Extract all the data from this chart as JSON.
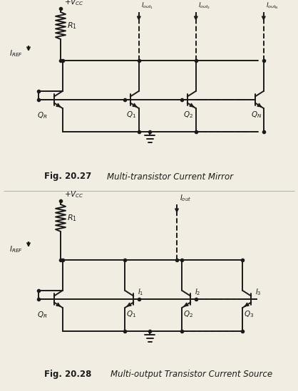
{
  "bg_color": "#f2ede3",
  "line_color": "#1a1a1a",
  "fig_label1": "Fig. 20.27",
  "fig_title1": "Multi-transistor Current Mirror",
  "fig_label2": "Fig. 20.28",
  "fig_title2": "Multi-output Transistor Current Source"
}
